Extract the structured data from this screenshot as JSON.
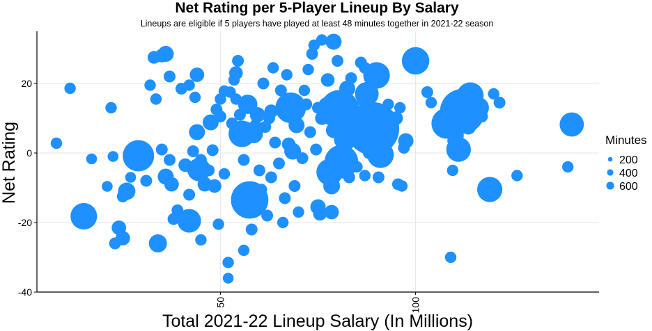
{
  "chart_data": {
    "type": "scatter",
    "title": "Net Rating per 5-Player Lineup By Salary",
    "subtitle": "Lineups are eligible if 5 players have played at least 48 minutes together in 2021-22 season",
    "xlabel": "Total 2021-22 Lineup Salary (In Millions)",
    "ylabel": "Net Rating",
    "xlim": [
      3,
      147
    ],
    "ylim": [
      -40,
      35
    ],
    "xticks": [
      50,
      100
    ],
    "yticks": [
      -40,
      -20,
      0,
      20
    ],
    "grid": true,
    "legend": {
      "title": "Minutes",
      "placement": "right",
      "entries": [
        {
          "label": "200",
          "minutes": 200
        },
        {
          "label": "400",
          "minutes": 400
        },
        {
          "label": "600",
          "minutes": 600
        }
      ]
    },
    "colors": {
      "point": "#1e90ff",
      "grid": "#e6e6e6",
      "axis": "#000000"
    },
    "points": [
      {
        "x": 8.0,
        "y": 2.8,
        "minutes": 55
      },
      {
        "x": 11.5,
        "y": 18.6,
        "minutes": 55
      },
      {
        "x": 15.0,
        "y": -18.2,
        "minutes": 300
      },
      {
        "x": 17.0,
        "y": -1.7,
        "minutes": 50
      },
      {
        "x": 21.0,
        "y": -9.6,
        "minutes": 50
      },
      {
        "x": 22.0,
        "y": 13.0,
        "minutes": 55
      },
      {
        "x": 22.5,
        "y": -1.0,
        "minutes": 50
      },
      {
        "x": 23.0,
        "y": -26.0,
        "minutes": 60
      },
      {
        "x": 24.0,
        "y": -21.5,
        "minutes": 90
      },
      {
        "x": 25.0,
        "y": -24.5,
        "minutes": 90
      },
      {
        "x": 25.0,
        "y": -12.5,
        "minutes": 60
      },
      {
        "x": 26.0,
        "y": -11.0,
        "minutes": 130
      },
      {
        "x": 27.0,
        "y": -7.0,
        "minutes": 50
      },
      {
        "x": 29.0,
        "y": -0.8,
        "minutes": 420
      },
      {
        "x": 31.0,
        "y": -8.0,
        "minutes": 60
      },
      {
        "x": 32.0,
        "y": 19.5,
        "minutes": 55
      },
      {
        "x": 33.0,
        "y": 27.5,
        "minutes": 70
      },
      {
        "x": 33.5,
        "y": 15.5,
        "minutes": 55
      },
      {
        "x": 34.0,
        "y": -26.0,
        "minutes": 140
      },
      {
        "x": 35.0,
        "y": 28.0,
        "minutes": 80
      },
      {
        "x": 36.0,
        "y": 28.5,
        "minutes": 110
      },
      {
        "x": 35.0,
        "y": 1.0,
        "minutes": 60
      },
      {
        "x": 36.0,
        "y": -6.8,
        "minutes": 110
      },
      {
        "x": 37.0,
        "y": 22.0,
        "minutes": 60
      },
      {
        "x": 37.0,
        "y": -2.0,
        "minutes": 60
      },
      {
        "x": 37.5,
        "y": -9.0,
        "minutes": 90
      },
      {
        "x": 38.0,
        "y": -19.0,
        "minutes": 60
      },
      {
        "x": 39.0,
        "y": -16.5,
        "minutes": 60
      },
      {
        "x": 40.0,
        "y": 18.5,
        "minutes": 60
      },
      {
        "x": 41.0,
        "y": -3.5,
        "minutes": 80
      },
      {
        "x": 42.0,
        "y": 19.5,
        "minutes": 55
      },
      {
        "x": 42.0,
        "y": -12.0,
        "minutes": 60
      },
      {
        "x": 42.0,
        "y": -19.5,
        "minutes": 240
      },
      {
        "x": 43.0,
        "y": 0.5,
        "minutes": 60
      },
      {
        "x": 43.5,
        "y": 16.0,
        "minutes": 55
      },
      {
        "x": 44.0,
        "y": 22.5,
        "minutes": 90
      },
      {
        "x": 44.0,
        "y": 6.0,
        "minutes": 110
      },
      {
        "x": 44.5,
        "y": -4.8,
        "minutes": 230
      },
      {
        "x": 45.0,
        "y": -2.0,
        "minutes": 60
      },
      {
        "x": 45.0,
        "y": -25.0,
        "minutes": 55
      },
      {
        "x": 46.0,
        "y": -9.0,
        "minutes": 90
      },
      {
        "x": 47.0,
        "y": -5.0,
        "minutes": 60
      },
      {
        "x": 47.5,
        "y": 8.8,
        "minutes": 110
      },
      {
        "x": 48.0,
        "y": 0.8,
        "minutes": 60
      },
      {
        "x": 48.5,
        "y": -9.5,
        "minutes": 80
      },
      {
        "x": 49.0,
        "y": 12.5,
        "minutes": 60
      },
      {
        "x": 49.5,
        "y": -20.5,
        "minutes": 55
      },
      {
        "x": 50.0,
        "y": 10.5,
        "minutes": 60
      },
      {
        "x": 50.0,
        "y": 15.5,
        "minutes": 55
      },
      {
        "x": 51.0,
        "y": -6.0,
        "minutes": 55
      },
      {
        "x": 51.0,
        "y": 17.8,
        "minutes": 55
      },
      {
        "x": 52.0,
        "y": -31.5,
        "minutes": 55
      },
      {
        "x": 52.0,
        "y": -36.0,
        "minutes": 50
      },
      {
        "x": 52.5,
        "y": 17.5,
        "minutes": 55
      },
      {
        "x": 53.0,
        "y": 8.5,
        "minutes": 60
      },
      {
        "x": 53.5,
        "y": 21.0,
        "minutes": 55
      },
      {
        "x": 54.0,
        "y": 15.5,
        "minutes": 55
      },
      {
        "x": 54.0,
        "y": 23.0,
        "minutes": 80
      },
      {
        "x": 54.5,
        "y": 26.5,
        "minutes": 60
      },
      {
        "x": 55.0,
        "y": 11.0,
        "minutes": 60
      },
      {
        "x": 55.5,
        "y": 5.5,
        "minutes": 300
      },
      {
        "x": 56.0,
        "y": -28.0,
        "minutes": 55
      },
      {
        "x": 56.0,
        "y": -2.0,
        "minutes": 60
      },
      {
        "x": 56.5,
        "y": 7.0,
        "minutes": 90
      },
      {
        "x": 57.0,
        "y": 14.0,
        "minutes": 160
      },
      {
        "x": 57.0,
        "y": -12.0,
        "minutes": 60
      },
      {
        "x": 57.5,
        "y": -13.5,
        "minutes": 600
      },
      {
        "x": 58.0,
        "y": -22.0,
        "minutes": 60
      },
      {
        "x": 58.5,
        "y": 5.5,
        "minutes": 150
      },
      {
        "x": 59.0,
        "y": 8.0,
        "minutes": 60
      },
      {
        "x": 59.5,
        "y": 11.0,
        "minutes": 100
      },
      {
        "x": 60.0,
        "y": -5.0,
        "minutes": 60
      },
      {
        "x": 60.5,
        "y": -10.5,
        "minutes": 55
      },
      {
        "x": 61.0,
        "y": 20.0,
        "minutes": 60
      },
      {
        "x": 61.5,
        "y": 7.5,
        "minutes": 60
      },
      {
        "x": 62.0,
        "y": -18.0,
        "minutes": 60
      },
      {
        "x": 62.5,
        "y": 10.0,
        "minutes": 60
      },
      {
        "x": 63.0,
        "y": 12.0,
        "minutes": 80
      },
      {
        "x": 63.0,
        "y": -7.0,
        "minutes": 60
      },
      {
        "x": 63.5,
        "y": 24.5,
        "minutes": 55
      },
      {
        "x": 64.0,
        "y": 3.0,
        "minutes": 60
      },
      {
        "x": 65.0,
        "y": -3.0,
        "minutes": 60
      },
      {
        "x": 65.5,
        "y": 18.0,
        "minutes": 60
      },
      {
        "x": 66.0,
        "y": -20.0,
        "minutes": 55
      },
      {
        "x": 66.5,
        "y": -13.0,
        "minutes": 60
      },
      {
        "x": 67.0,
        "y": 22.5,
        "minutes": 55
      },
      {
        "x": 67.5,
        "y": 2.5,
        "minutes": 80
      },
      {
        "x": 68.0,
        "y": 13.0,
        "minutes": 400
      },
      {
        "x": 68.5,
        "y": 0.5,
        "minutes": 120
      },
      {
        "x": 69.0,
        "y": -9.5,
        "minutes": 60
      },
      {
        "x": 69.5,
        "y": 8.0,
        "minutes": 110
      },
      {
        "x": 70.0,
        "y": -17.0,
        "minutes": 55
      },
      {
        "x": 71.0,
        "y": -1.5,
        "minutes": 60
      },
      {
        "x": 71.5,
        "y": 18.0,
        "minutes": 55
      },
      {
        "x": 72.0,
        "y": 14.0,
        "minutes": 60
      },
      {
        "x": 72.5,
        "y": 24.0,
        "minutes": 55
      },
      {
        "x": 73.0,
        "y": 6.0,
        "minutes": 60
      },
      {
        "x": 73.5,
        "y": 28.5,
        "minutes": 60
      },
      {
        "x": 74.0,
        "y": 31.0,
        "minutes": 55
      },
      {
        "x": 74.5,
        "y": 1.0,
        "minutes": 60
      },
      {
        "x": 75.0,
        "y": -15.5,
        "minutes": 100
      },
      {
        "x": 75.0,
        "y": 13.0,
        "minutes": 60
      },
      {
        "x": 75.5,
        "y": -17.5,
        "minutes": 80
      },
      {
        "x": 76.0,
        "y": 32.5,
        "minutes": 55
      },
      {
        "x": 76.0,
        "y": 10.0,
        "minutes": 80
      },
      {
        "x": 77.0,
        "y": 14.0,
        "minutes": 80
      },
      {
        "x": 77.5,
        "y": 21.0,
        "minutes": 80
      },
      {
        "x": 78.0,
        "y": -5.5,
        "minutes": 300
      },
      {
        "x": 78.5,
        "y": -9.5,
        "minutes": 120
      },
      {
        "x": 78.5,
        "y": -17.0,
        "minutes": 90
      },
      {
        "x": 79.0,
        "y": 32.0,
        "minutes": 110
      },
      {
        "x": 79.0,
        "y": 6.5,
        "minutes": 100
      },
      {
        "x": 79.5,
        "y": 15.0,
        "minutes": 90
      },
      {
        "x": 80.0,
        "y": 26.5,
        "minutes": 60
      },
      {
        "x": 80.5,
        "y": 12.5,
        "minutes": 650
      },
      {
        "x": 81.0,
        "y": -2.5,
        "minutes": 480
      },
      {
        "x": 81.5,
        "y": 10.0,
        "minutes": 80
      },
      {
        "x": 82.0,
        "y": 4.0,
        "minutes": 220
      },
      {
        "x": 82.5,
        "y": 18.5,
        "minutes": 110
      },
      {
        "x": 83.0,
        "y": -7.0,
        "minutes": 60
      },
      {
        "x": 83.5,
        "y": 21.5,
        "minutes": 60
      },
      {
        "x": 84.0,
        "y": 13.0,
        "minutes": 60
      },
      {
        "x": 85.0,
        "y": -4.0,
        "minutes": 55
      },
      {
        "x": 85.0,
        "y": 10.0,
        "minutes": 80
      },
      {
        "x": 86.0,
        "y": 26.0,
        "minutes": 60
      },
      {
        "x": 86.5,
        "y": 15.0,
        "minutes": 60
      },
      {
        "x": 87.0,
        "y": 24.5,
        "minutes": 60
      },
      {
        "x": 87.0,
        "y": -6.5,
        "minutes": 55
      },
      {
        "x": 87.5,
        "y": 17.0,
        "minutes": 240
      },
      {
        "x": 88.0,
        "y": 0.0,
        "minutes": 60
      },
      {
        "x": 88.5,
        "y": 3.0,
        "minutes": 60
      },
      {
        "x": 89.0,
        "y": 7.0,
        "minutes": 1200
      },
      {
        "x": 90.0,
        "y": 22.3,
        "minutes": 300
      },
      {
        "x": 90.5,
        "y": -7.0,
        "minutes": 60
      },
      {
        "x": 91.0,
        "y": -0.5,
        "minutes": 300
      },
      {
        "x": 92.0,
        "y": 11.0,
        "minutes": 55
      },
      {
        "x": 93.0,
        "y": 14.0,
        "minutes": 55
      },
      {
        "x": 94.0,
        "y": 8.5,
        "minutes": 60
      },
      {
        "x": 95.0,
        "y": 10.0,
        "minutes": 80
      },
      {
        "x": 95.5,
        "y": -9.0,
        "minutes": 60
      },
      {
        "x": 96.0,
        "y": 13.0,
        "minutes": 55
      },
      {
        "x": 96.5,
        "y": -9.5,
        "minutes": 55
      },
      {
        "x": 97.0,
        "y": 1.5,
        "minutes": 60
      },
      {
        "x": 97.5,
        "y": 3.5,
        "minutes": 100
      },
      {
        "x": 100.0,
        "y": 26.5,
        "minutes": 320
      },
      {
        "x": 103.0,
        "y": 17.5,
        "minutes": 60
      },
      {
        "x": 104.0,
        "y": 14.5,
        "minutes": 55
      },
      {
        "x": 108.0,
        "y": 8.5,
        "minutes": 400
      },
      {
        "x": 108.5,
        "y": 13.0,
        "minutes": 120
      },
      {
        "x": 109.0,
        "y": -30.0,
        "minutes": 55
      },
      {
        "x": 109.5,
        "y": -5.0,
        "minutes": 55
      },
      {
        "x": 110.0,
        "y": 3.5,
        "minutes": 90
      },
      {
        "x": 110.5,
        "y": 5.0,
        "minutes": 90
      },
      {
        "x": 111.0,
        "y": 1.0,
        "minutes": 260
      },
      {
        "x": 112.0,
        "y": 12.0,
        "minutes": 850
      },
      {
        "x": 113.0,
        "y": 10.0,
        "minutes": 110
      },
      {
        "x": 113.5,
        "y": 7.5,
        "minutes": 100
      },
      {
        "x": 114.0,
        "y": 16.5,
        "minutes": 300
      },
      {
        "x": 116.0,
        "y": 13.0,
        "minutes": 200
      },
      {
        "x": 117.0,
        "y": 10.5,
        "minutes": 60
      },
      {
        "x": 119.0,
        "y": -10.5,
        "minutes": 270
      },
      {
        "x": 120.0,
        "y": 17.0,
        "minutes": 55
      },
      {
        "x": 121.5,
        "y": 14.5,
        "minutes": 60
      },
      {
        "x": 126.0,
        "y": -6.5,
        "minutes": 55
      },
      {
        "x": 139.0,
        "y": -4.0,
        "minutes": 55
      },
      {
        "x": 140.0,
        "y": 8.2,
        "minutes": 250
      }
    ]
  }
}
